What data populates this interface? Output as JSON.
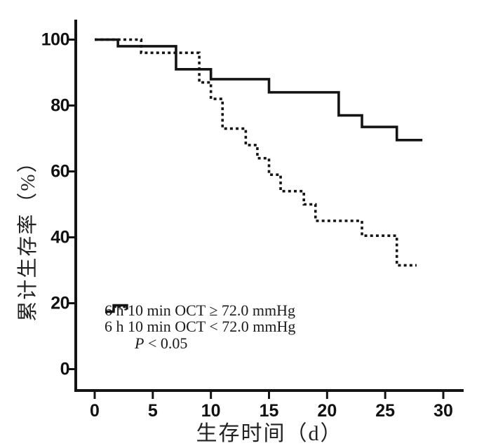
{
  "figure": {
    "background_color": "#ffffff",
    "ink_color": "#141414",
    "title": ""
  },
  "chart_data": {
    "type": "line",
    "variant": "kaplan_meier_step_survival",
    "title": "",
    "xlabel": "生存时间（d）",
    "ylabel": "累计生存率（%）",
    "xlim": [
      0,
      31.5
    ],
    "ylim": [
      0,
      107
    ],
    "xticks": [
      0,
      5,
      10,
      15,
      20,
      25,
      30
    ],
    "yticks": [
      0,
      20,
      40,
      60,
      80,
      100
    ],
    "grid": false,
    "legend_position": "inside-lower-left",
    "annotation": "P < 0.05",
    "series": [
      {
        "name": "6 h 10 min OCT ≥ 72.0 mmHg",
        "line_style": "solid",
        "steps_x_day_y_percent": [
          [
            0,
            100
          ],
          [
            2,
            98
          ],
          [
            7,
            91
          ],
          [
            10,
            88
          ],
          [
            15,
            84
          ],
          [
            21,
            77
          ],
          [
            23,
            73.5
          ],
          [
            26,
            69.5
          ]
        ],
        "end_x": 28.2
      },
      {
        "name": "6 h 10 min OCT < 72.0 mmHg",
        "line_style": "dotted",
        "steps_x_day_y_percent": [
          [
            0,
            100
          ],
          [
            4,
            96
          ],
          [
            9,
            87
          ],
          [
            10,
            82
          ],
          [
            11,
            73
          ],
          [
            13,
            68
          ],
          [
            14,
            64
          ],
          [
            15,
            59
          ],
          [
            16,
            54
          ],
          [
            18,
            50
          ],
          [
            19,
            45
          ],
          [
            23,
            40.5
          ],
          [
            26,
            31.5
          ]
        ],
        "end_x": 27.7
      }
    ]
  }
}
